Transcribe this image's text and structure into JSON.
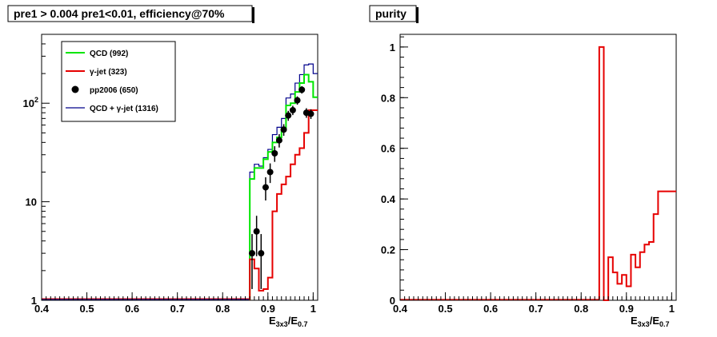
{
  "chart_data": [
    {
      "type": "histogram",
      "title": "pre1 > 0.004  pre1<0.01, efficiency@70%",
      "xlabel_main": "E",
      "xlabel_sub1": "3x3",
      "xlabel_mid": "/E",
      "xlabel_sub2": "0.7",
      "xlim": [
        0.4,
        1.01
      ],
      "ylim": [
        1,
        500
      ],
      "yscale": "log",
      "xticks": [
        "0.4",
        "0.5",
        "0.6",
        "0.7",
        "0.8",
        "0.9",
        "1"
      ],
      "yticks": [
        "1",
        "10",
        "10"
      ],
      "yticks_exp": [
        "",
        "",
        "2"
      ],
      "legend_position": "top-left",
      "bin_edges": [
        0.86,
        0.87,
        0.88,
        0.89,
        0.9,
        0.91,
        0.92,
        0.93,
        0.94,
        0.95,
        0.96,
        0.97,
        0.98,
        0.99,
        1.0,
        1.01
      ],
      "series": [
        {
          "name": "QCD (992)",
          "color": "#00e600",
          "style": "step",
          "values": [
            17,
            22,
            22,
            27,
            32,
            40,
            45,
            55,
            95,
            100,
            130,
            160,
            195,
            165,
            115
          ]
        },
        {
          "name": "γ-jet (323)",
          "color": "#e60000",
          "style": "step",
          "values": [
            2.6,
            2.1,
            1.25,
            1.3,
            1.7,
            8,
            12,
            15,
            18,
            24,
            30,
            35,
            50,
            85,
            85
          ]
        },
        {
          "name": "pp2006 (650)",
          "color": "#000000",
          "style": "points",
          "x": [
            0.865,
            0.875,
            0.885,
            0.895,
            0.905,
            0.915,
            0.925,
            0.935,
            0.945,
            0.955,
            0.965,
            0.975,
            0.985,
            0.995
          ],
          "values": [
            3,
            5,
            3,
            14,
            20,
            31,
            42,
            54,
            75,
            85,
            107,
            137,
            80,
            78
          ],
          "errors": [
            1.7,
            2.2,
            1.7,
            3.7,
            4.5,
            5.6,
            6.5,
            7.3,
            8.7,
            9.2,
            10.3,
            11.7,
            8.9,
            8.8
          ]
        },
        {
          "name": "QCD + γ-jet (1316)",
          "color": "#00008b",
          "style": "step",
          "values": [
            20,
            24,
            23,
            28,
            34,
            48,
            57,
            70,
            113,
            124,
            160,
            195,
            245,
            250,
            200
          ]
        }
      ],
      "baseline": {
        "x_from": 0.4,
        "x_to": 0.86,
        "value": 1
      }
    },
    {
      "type": "histogram",
      "title": "purity",
      "xlabel_main": "E",
      "xlabel_sub1": "3x3",
      "xlabel_mid": "/E",
      "xlabel_sub2": "0.7",
      "xlim": [
        0.4,
        1.01
      ],
      "ylim": [
        0,
        1.05
      ],
      "yscale": "linear",
      "xticks": [
        "0.4",
        "0.5",
        "0.6",
        "0.7",
        "0.8",
        "0.9",
        "1"
      ],
      "yticks": [
        "0",
        "0.2",
        "0.4",
        "0.6",
        "0.8",
        "1"
      ],
      "series": [
        {
          "name": "purity",
          "color": "#e60000",
          "style": "step",
          "bin_edges": [
            0.84,
            0.85,
            0.86,
            0.87,
            0.88,
            0.89,
            0.9,
            0.91,
            0.92,
            0.93,
            0.94,
            0.95,
            0.96,
            0.97,
            0.98,
            0.99,
            1.0,
            1.01
          ],
          "values": [
            1.0,
            0.0,
            0.17,
            0.11,
            0.065,
            0.1,
            0.055,
            0.18,
            0.13,
            0.19,
            0.22,
            0.23,
            0.34,
            0.43,
            0.43,
            0.43,
            0.43
          ]
        }
      ],
      "baseline": {
        "x_from": 0.4,
        "x_to": 0.84,
        "value": 0
      }
    }
  ]
}
